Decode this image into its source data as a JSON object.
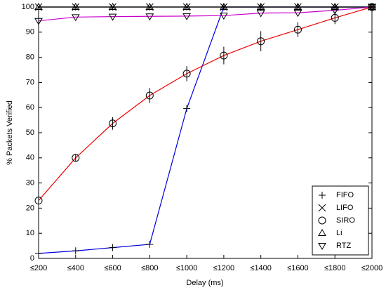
{
  "chart_data": {
    "type": "line",
    "x_label": "Delay (ms)",
    "y_label": "% Packets Verified",
    "categories": [
      "≤200",
      "≤400",
      "≤600",
      "≤800",
      "≤1000",
      "≤1200",
      "≤1400",
      "≤1600",
      "≤1800",
      "≤2000"
    ],
    "ylim": [
      0,
      100
    ],
    "yticks": [
      0,
      10,
      20,
      30,
      40,
      50,
      60,
      70,
      80,
      90,
      100
    ],
    "legend": "lower right",
    "series": [
      {
        "name": "FIFO",
        "color": "#0000dd",
        "marker": "plus",
        "values": [
          2,
          3,
          4.3,
          5.6,
          59.6,
          100,
          100,
          100,
          100,
          100
        ]
      },
      {
        "name": "LIFO",
        "color": "#000000",
        "marker": "x",
        "values": [
          100,
          100,
          100,
          100,
          100,
          100,
          100,
          100,
          100,
          100
        ]
      },
      {
        "name": "SIRO",
        "color": "#ee0000",
        "marker": "circle",
        "values": [
          23,
          40,
          53.7,
          64.8,
          73.5,
          80.7,
          86.4,
          91,
          95.7,
          100
        ],
        "errors": [
          1,
          1.5,
          2.5,
          3,
          3,
          3.5,
          4,
          3,
          2.5,
          0.5
        ]
      },
      {
        "name": "Li",
        "color": "#000000",
        "marker": "triangle-up",
        "values": [
          100,
          100,
          100,
          100,
          100,
          100,
          100,
          100,
          100,
          100
        ]
      },
      {
        "name": "RTZ",
        "color": "#cc00cc",
        "marker": "triangle-down",
        "values": [
          94.5,
          96,
          96.2,
          96.3,
          96.4,
          96.6,
          97.6,
          97.7,
          98.7,
          100
        ]
      }
    ]
  }
}
